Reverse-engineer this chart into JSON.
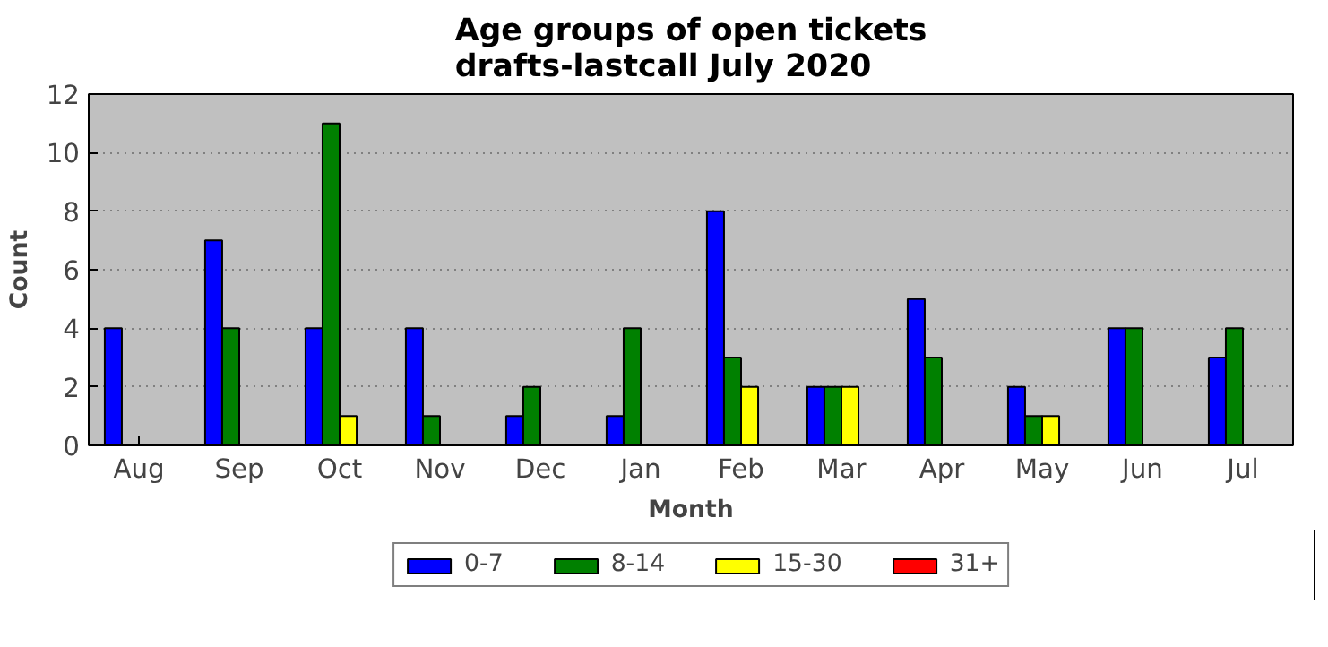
{
  "chart_data": {
    "type": "bar",
    "title": "Age groups of open tickets\ndrafts-lastcall July 2020",
    "xlabel": "Month",
    "ylabel": "Count",
    "categories": [
      "Aug",
      "Sep",
      "Oct",
      "Nov",
      "Dec",
      "Jan",
      "Feb",
      "Mar",
      "Apr",
      "May",
      "Jun",
      "Jul"
    ],
    "series": [
      {
        "name": "0-7",
        "color": "#0000ff",
        "values": [
          4,
          7,
          4,
          4,
          1,
          1,
          8,
          2,
          5,
          2,
          4,
          3
        ]
      },
      {
        "name": "8-14",
        "color": "#008000",
        "values": [
          0,
          4,
          11,
          1,
          2,
          4,
          3,
          2,
          3,
          1,
          4,
          4
        ]
      },
      {
        "name": "15-30",
        "color": "#ffff00",
        "values": [
          0,
          0,
          1,
          0,
          0,
          0,
          2,
          2,
          0,
          1,
          0,
          0
        ]
      },
      {
        "name": "31+",
        "color": "#ff0000",
        "values": [
          0,
          0,
          0,
          0,
          0,
          0,
          0,
          0,
          0,
          0,
          0,
          0
        ]
      }
    ],
    "ylim": [
      0,
      12
    ],
    "yticks": [
      0,
      2,
      4,
      6,
      8,
      10,
      12
    ],
    "grid": "y",
    "legend": "bottom"
  }
}
